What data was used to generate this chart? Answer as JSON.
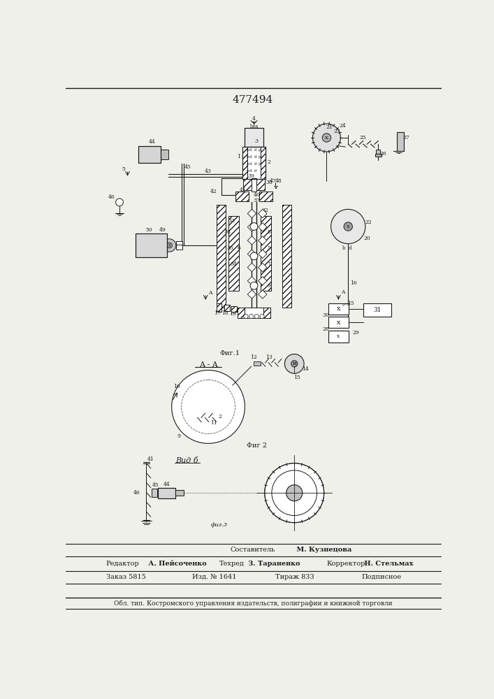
{
  "title": "477494",
  "fig1_label": "Фиг.1",
  "fig2_label": "Фиг 2",
  "section_label": "A - A",
  "view_label": "Вид б",
  "sestavitel_label": "Составитель",
  "sestavitel_name": " М. Кузнецова",
  "editor_label": "Редактор",
  "editor_name": " А. Пейсоченко",
  "tehred_label": "Техред",
  "tehred_name": " З. Тараненко",
  "korrektor_label": "Корректор",
  "korrektor_name": " Н. Стельмах",
  "zakaz_label": "Заказ 5815",
  "izd_label": "Изд. № 1641",
  "tirazh_label": "Тираж 833",
  "podpisnoe_label": "Подписное",
  "publisher_line": "Обл. тип. Костромского управления издательств, полиграфии и книжной торговли",
  "bg_color": "#f0f0eb",
  "line_color": "#1a1a1a"
}
